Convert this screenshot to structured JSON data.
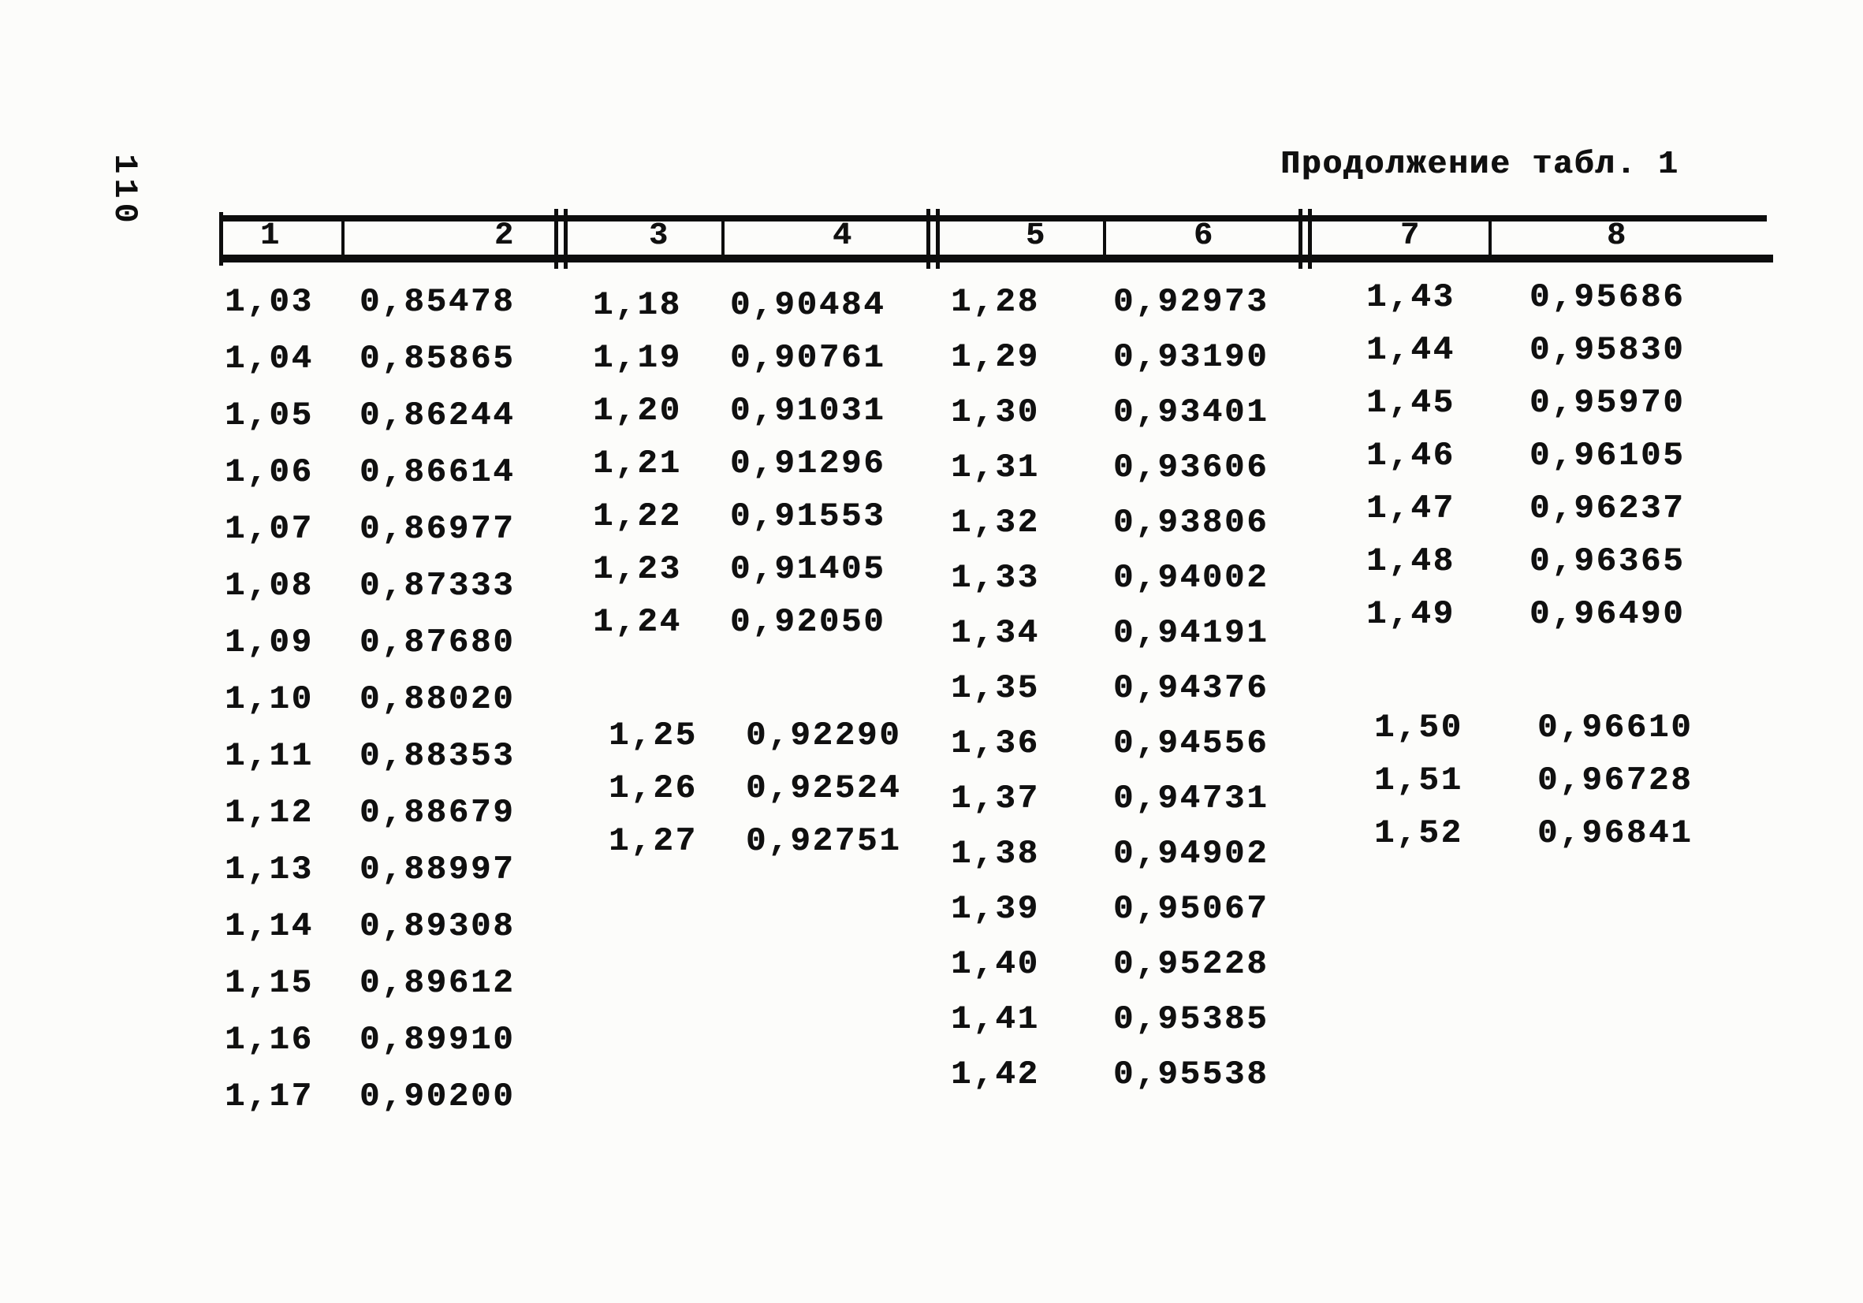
{
  "page": {
    "number": "110"
  },
  "title": "Продолжение табл. 1",
  "table": {
    "column_headers": [
      "1",
      "2",
      "3",
      "4",
      "5",
      "6",
      "7",
      "8"
    ],
    "groups": [
      {
        "name": "columns-1-2",
        "rows": [
          [
            "1,03",
            "0,85478"
          ],
          [
            "1,04",
            "0,85865"
          ],
          [
            "1,05",
            "0,86244"
          ],
          [
            "1,06",
            "0,86614"
          ],
          [
            "1,07",
            "0,86977"
          ],
          [
            "1,08",
            "0,87333"
          ],
          [
            "1,09",
            "0,87680"
          ],
          [
            "1,10",
            "0,88020"
          ],
          [
            "1,11",
            "0,88353"
          ],
          [
            "1,12",
            "0,88679"
          ],
          [
            "1,13",
            "0,88997"
          ],
          [
            "1,14",
            "0,89308"
          ],
          [
            "1,15",
            "0,89612"
          ],
          [
            "1,16",
            "0,89910"
          ],
          [
            "1,17",
            "0,90200"
          ]
        ]
      },
      {
        "name": "columns-3-4",
        "rows": [
          [
            "1,18",
            "0,90484"
          ],
          [
            "1,19",
            "0,90761"
          ],
          [
            "1,20",
            "0,91031"
          ],
          [
            "1,21",
            "0,91296"
          ],
          [
            "1,22",
            "0,91553"
          ],
          [
            "1,23",
            "0,91405"
          ],
          [
            "1,24",
            "0,92050"
          ],
          [
            "1,25",
            "0,92290"
          ],
          [
            "1,26",
            "0,92524"
          ],
          [
            "1,27",
            "0,92751"
          ]
        ]
      },
      {
        "name": "columns-5-6",
        "rows": [
          [
            "1,28",
            "0,92973"
          ],
          [
            "1,29",
            "0,93190"
          ],
          [
            "1,30",
            "0,93401"
          ],
          [
            "1,31",
            "0,93606"
          ],
          [
            "1,32",
            "0,93806"
          ],
          [
            "1,33",
            "0,94002"
          ],
          [
            "1,34",
            "0,94191"
          ],
          [
            "1,35",
            "0,94376"
          ],
          [
            "1,36",
            "0,94556"
          ],
          [
            "1,37",
            "0,94731"
          ],
          [
            "1,38",
            "0,94902"
          ],
          [
            "1,39",
            "0,95067"
          ],
          [
            "1,40",
            "0,95228"
          ],
          [
            "1,41",
            "0,95385"
          ],
          [
            "1,42",
            "0,95538"
          ]
        ]
      },
      {
        "name": "columns-7-8",
        "rows": [
          [
            "1,43",
            "0,95686"
          ],
          [
            "1,44",
            "0,95830"
          ],
          [
            "1,45",
            "0,95970"
          ],
          [
            "1,46",
            "0,96105"
          ],
          [
            "1,47",
            "0,96237"
          ],
          [
            "1,48",
            "0,96365"
          ],
          [
            "1,49",
            "0,96490"
          ],
          [
            "1,50",
            "0,96610"
          ],
          [
            "1,51",
            "0,96728"
          ],
          [
            "1,52",
            "0,96841"
          ]
        ]
      }
    ]
  },
  "colors": {
    "ink": "#101010",
    "paper": "#fcfcfa"
  }
}
